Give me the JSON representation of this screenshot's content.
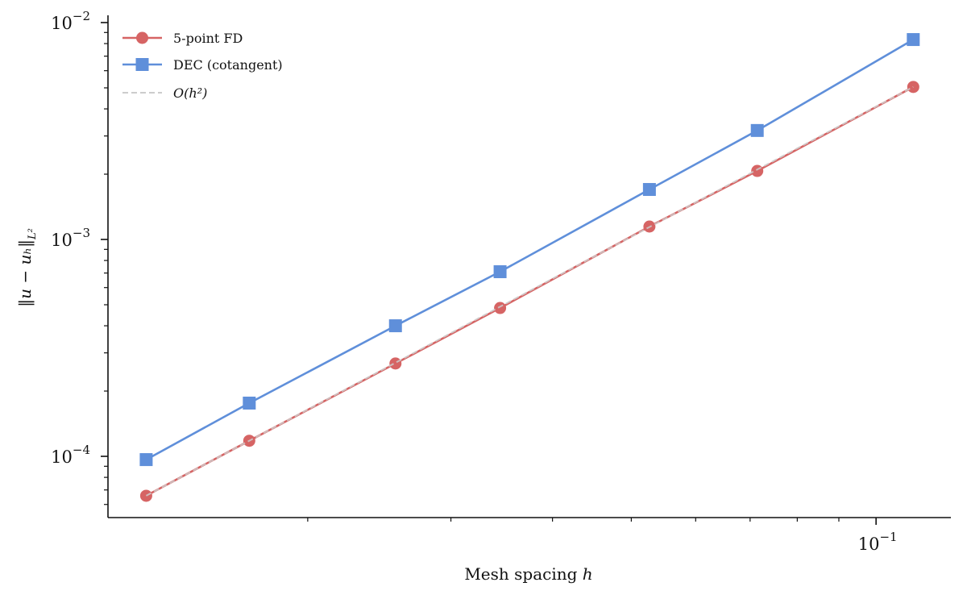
{
  "chart_data": {
    "type": "line",
    "title": "",
    "xlabel": "Mesh spacing h",
    "ylabel": "‖u − u_h‖_{L²}",
    "xscale": "log",
    "yscale": "log",
    "xlim": [
      0.01136,
      0.1236
    ],
    "ylim": [
      5.22e-05,
      0.0108
    ],
    "x_ticks": [
      {
        "value": 0.1,
        "label_base": "10",
        "label_exp": "−1"
      }
    ],
    "y_ticks": [
      {
        "value": 0.01,
        "label_base": "10",
        "label_exp": "−2"
      },
      {
        "value": 0.001,
        "label_base": "10",
        "label_exp": "−3"
      },
      {
        "value": 0.0001,
        "label_base": "10",
        "label_exp": "−4"
      }
    ],
    "x": [
      0.012658,
      0.016949,
      0.025641,
      0.034483,
      0.052632,
      0.071429,
      0.111111
    ],
    "series": [
      {
        "name": "5-point FD",
        "marker": "circle",
        "color": "#d66464",
        "values": [
          6.58e-05,
          0.000118,
          0.000268,
          0.000483,
          0.001147,
          0.00207,
          0.00505
        ]
      },
      {
        "name": "DEC (cotangent)",
        "marker": "square",
        "color": "#5f8fda",
        "values": [
          9.66e-05,
          0.000176,
          0.0004,
          0.00071,
          0.0017,
          0.00318,
          0.00835
        ]
      },
      {
        "name": "O(h²)",
        "marker": "none",
        "style": "dashed",
        "color": "#cccccc",
        "values": [
          6.58e-05,
          0.000118,
          0.00027,
          0.00049,
          0.001141,
          0.0021,
          0.00505
        ]
      }
    ],
    "legend": {
      "position": "upper left",
      "entries": [
        {
          "label": "5-point FD",
          "italic": false
        },
        {
          "label": "DEC (cotangent)",
          "italic": false
        },
        {
          "label": "O(h²)",
          "italic": true
        }
      ]
    },
    "grid": false
  },
  "labels": {
    "xlabel_text": "Mesh spacing ",
    "xlabel_var": "h",
    "ylabel_text": "‖u − uₕ‖",
    "ylabel_sub": "L²"
  }
}
